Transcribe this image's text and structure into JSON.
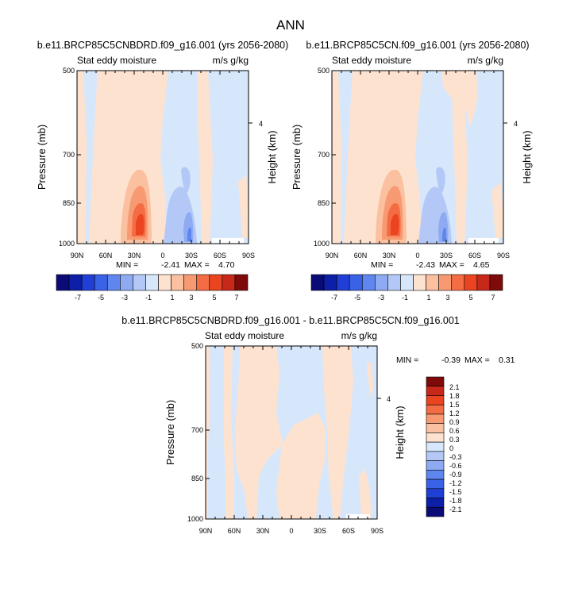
{
  "figure": {
    "title": "ANN"
  },
  "colors": {
    "scale": [
      "#0b0b78",
      "#0d1fa6",
      "#1f3fd6",
      "#3a62e6",
      "#5e86ee",
      "#8eaaf2",
      "#b3c8f6",
      "#d7e7fb",
      "#fde2cf",
      "#fbc0a0",
      "#f79a72",
      "#f46c43",
      "#ea4420",
      "#c8281a",
      "#7f0a0a"
    ]
  },
  "chart_data": [
    {
      "type": "contour",
      "title": "b.e11.BRCP85C5CNBDRD.f09_g16.001 (yrs 2056-2080)",
      "field_label": "Stat eddy moisture",
      "units": "m/s g/kg",
      "ylabel": "Pressure (mb)",
      "y2label": "Height (km)",
      "y_ticks": [
        "500",
        "700",
        "850",
        "1000"
      ],
      "y2_ticks": [
        "4"
      ],
      "x_ticks": [
        "90N",
        "60N",
        "30N",
        "0",
        "30S",
        "60S",
        "90S"
      ],
      "xlim": [
        90,
        -90
      ],
      "ylim": [
        1000,
        500
      ],
      "min_label": "MIN =",
      "min_value": "-2.41",
      "max_label": "MAX =",
      "max_value": "4.70",
      "extremes": {
        "min": -2.41,
        "max": 4.7
      }
    },
    {
      "type": "contour",
      "title": "b.e11.BRCP85C5CN.f09_g16.001 (yrs 2056-2080)",
      "field_label": "Stat eddy moisture",
      "units": "m/s g/kg",
      "ylabel": "Pressure (mb)",
      "y2label": "Height (km)",
      "y_ticks": [
        "500",
        "700",
        "850",
        "1000"
      ],
      "y2_ticks": [
        "4"
      ],
      "x_ticks": [
        "90N",
        "60N",
        "30N",
        "0",
        "30S",
        "60S",
        "90S"
      ],
      "xlim": [
        90,
        -90
      ],
      "ylim": [
        1000,
        500
      ],
      "min_label": "MIN =",
      "min_value": "-2.43",
      "max_label": "MAX =",
      "max_value": "4.65",
      "extremes": {
        "min": -2.43,
        "max": 4.65
      }
    },
    {
      "type": "contour",
      "title": "b.e11.BRCP85C5CNBDRD.f09_g16.001 - b.e11.BRCP85C5CN.f09_g16.001",
      "field_label": "Stat eddy moisture",
      "units": "m/s g/kg",
      "ylabel": "Pressure (mb)",
      "y2label": "Height (km)",
      "y_ticks": [
        "500",
        "700",
        "850",
        "1000"
      ],
      "y2_ticks": [
        "4"
      ],
      "x_ticks": [
        "90N",
        "60N",
        "30N",
        "0",
        "30S",
        "60S",
        "90S"
      ],
      "xlim": [
        90,
        -90
      ],
      "ylim": [
        1000,
        500
      ],
      "min_label": "MIN =",
      "min_value": "-0.39",
      "max_label": "MAX =",
      "max_value": "0.31",
      "extremes": {
        "min": -0.39,
        "max": 0.31
      }
    }
  ],
  "colorbar_top": {
    "labels": [
      "-7",
      "-5",
      "-3",
      "-1",
      "1",
      "3",
      "5",
      "7"
    ]
  },
  "colorbar_diff": {
    "labels": [
      "2.1",
      "1.8",
      "1.5",
      "1.2",
      "0.9",
      "0.6",
      "0.3",
      "0",
      "-0.3",
      "-0.6",
      "-0.9",
      "-1.2",
      "-1.5",
      "-1.8",
      "-2.1"
    ]
  }
}
